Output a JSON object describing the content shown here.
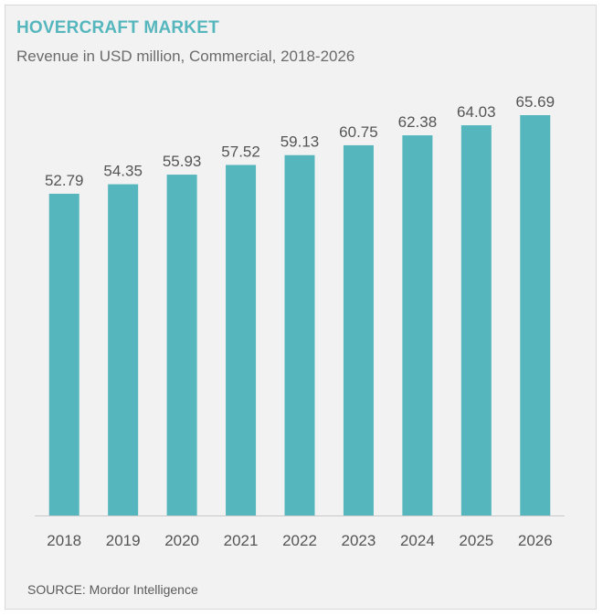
{
  "header": {
    "title": "HOVERCRAFT MARKET",
    "subtitle": "Revenue in USD million, Commercial, 2018-2026"
  },
  "footer": {
    "source": "SOURCE: Mordor Intelligence"
  },
  "colors": {
    "bar": "#55b6bd",
    "title": "#55b6bd",
    "background": "#f2f2f2"
  },
  "chart_data": {
    "type": "bar",
    "title": "HOVERCRAFT MARKET",
    "subtitle": "Revenue in USD million, Commercial, 2018-2026",
    "categories": [
      "2018",
      "2019",
      "2020",
      "2021",
      "2022",
      "2023",
      "2024",
      "2025",
      "2026"
    ],
    "values": [
      52.79,
      54.35,
      55.93,
      57.52,
      59.13,
      60.75,
      62.38,
      64.03,
      65.69
    ],
    "value_labels": [
      "52.79",
      "54.35",
      "55.93",
      "57.52",
      "59.13",
      "60.75",
      "62.38",
      "64.03",
      "65.69"
    ],
    "xlabel": "",
    "ylabel": "",
    "ylim": [
      0,
      65.69
    ],
    "grid": false,
    "legend": "none"
  }
}
